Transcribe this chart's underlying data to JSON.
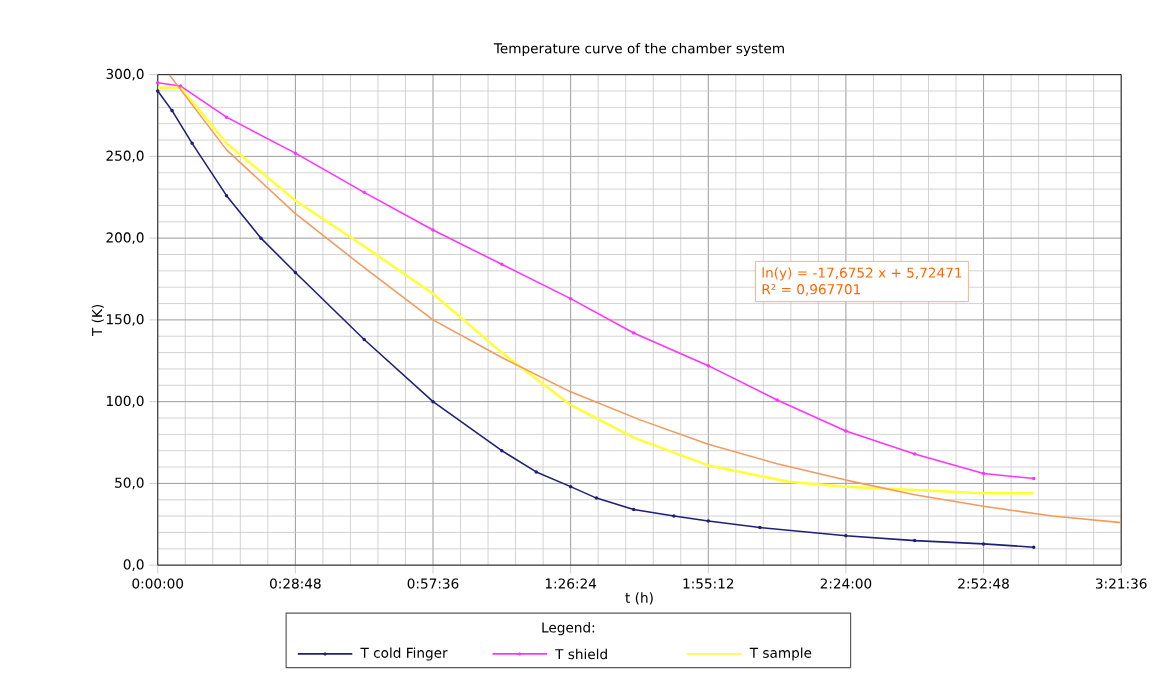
{
  "chart_data": {
    "type": "line",
    "title": "Temperature curve of the chamber system",
    "xlabel": "t (h)",
    "ylabel": "T (K)",
    "legend_title": "Legend:",
    "xlim": [
      0,
      3.36
    ],
    "ylim": [
      0,
      300
    ],
    "xticks": [
      {
        "value": 0,
        "label": "0:00:00"
      },
      {
        "value": 0.48,
        "label": "0:28:48"
      },
      {
        "value": 0.96,
        "label": "0:57:36"
      },
      {
        "value": 1.44,
        "label": "1:26:24"
      },
      {
        "value": 1.92,
        "label": "1:55:12"
      },
      {
        "value": 2.4,
        "label": "2:24:00"
      },
      {
        "value": 2.88,
        "label": "2:52:48"
      },
      {
        "value": 3.36,
        "label": "3:21:36"
      }
    ],
    "yticks": [
      {
        "value": 0,
        "label": "0,0"
      },
      {
        "value": 50,
        "label": "50,0"
      },
      {
        "value": 100,
        "label": "100,0"
      },
      {
        "value": 150,
        "label": "150,0"
      },
      {
        "value": 200,
        "label": "200,0"
      },
      {
        "value": 250,
        "label": "250,0"
      },
      {
        "value": 300,
        "label": "300,0"
      }
    ],
    "grid": true,
    "legend": "bottom",
    "line_style": "solid",
    "annotations": [
      "ln(y) = -17,6752 x + 5,72471",
      "R² = 0,967701"
    ],
    "series": [
      {
        "name": "T cold Finger",
        "color": "#1f1f7a",
        "marker": "circle",
        "x": [
          0,
          0.05,
          0.12,
          0.24,
          0.36,
          0.48,
          0.72,
          0.96,
          1.2,
          1.32,
          1.44,
          1.53,
          1.66,
          1.8,
          1.92,
          2.1,
          2.4,
          2.64,
          2.88,
          3.055
        ],
        "values": [
          290,
          278,
          258,
          226,
          200,
          179,
          138,
          100,
          70,
          57,
          48,
          41,
          34,
          30,
          27,
          23,
          18,
          15,
          13,
          11
        ]
      },
      {
        "name": "T shield",
        "color": "#ff33ff",
        "marker": "circle",
        "x": [
          0,
          0.08,
          0.24,
          0.48,
          0.72,
          0.96,
          1.2,
          1.44,
          1.66,
          1.92,
          2.16,
          2.4,
          2.64,
          2.88,
          3.055
        ],
        "values": [
          295,
          293,
          274,
          252,
          228,
          205,
          184,
          163,
          142,
          122,
          101,
          82,
          68,
          56,
          53
        ]
      },
      {
        "name": "T sample",
        "color": "#ffff33",
        "marker": "none",
        "x": [
          0,
          0.08,
          0.24,
          0.48,
          0.72,
          0.96,
          1.2,
          1.44,
          1.66,
          1.92,
          2.2,
          2.4,
          2.88,
          3.055
        ],
        "values": [
          292,
          292,
          258,
          223,
          195,
          166,
          130,
          98,
          78,
          61,
          51,
          48,
          44,
          44
        ]
      },
      {
        "type": "line",
        "color": "#f39a5c",
        "marker": "none",
        "x": [
          0.04,
          0.24,
          0.48,
          0.72,
          0.96,
          1.2,
          1.44,
          1.68,
          1.92,
          2.16,
          2.4,
          2.64,
          2.88,
          3.12,
          3.36
        ],
        "values": [
          300,
          254,
          215,
          182,
          150,
          127,
          106,
          89,
          74,
          62,
          52,
          43,
          36,
          30,
          26
        ]
      }
    ]
  }
}
